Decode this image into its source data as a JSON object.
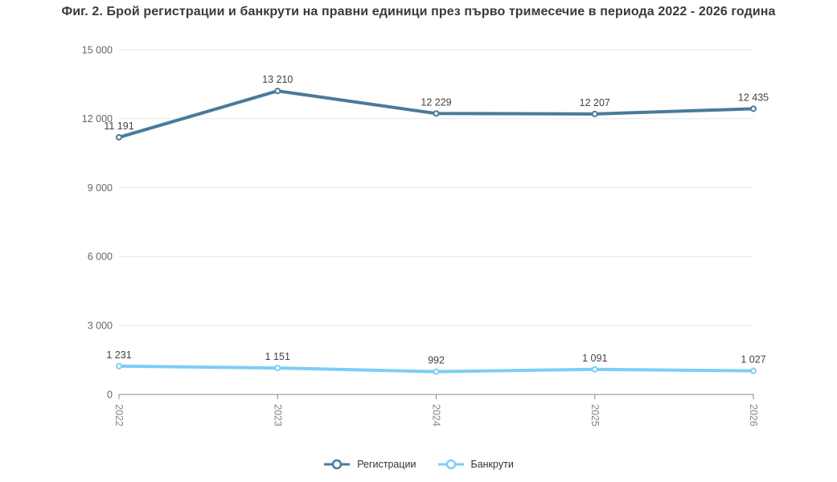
{
  "chart_data": {
    "type": "line",
    "title": "Фиг. 2. Брой регистрации и банкрути на правни единици през първо тримесечие в периода 2022 - 2026 година",
    "xlabel": "",
    "ylabel": "",
    "categories": [
      "2022",
      "2023",
      "2024",
      "2025",
      "2026"
    ],
    "series": [
      {
        "name": "Регистрации",
        "color": "#4a7a9b",
        "values": [
          11191,
          13210,
          12229,
          12207,
          12435
        ],
        "point_labels": [
          "11 191",
          "13 210",
          "12 229",
          "12 207",
          "12 435"
        ]
      },
      {
        "name": "Банкрути",
        "color": "#7ecdf5",
        "values": [
          1231,
          1151,
          992,
          1091,
          1027
        ],
        "point_labels": [
          "1 231",
          "1 151",
          "992",
          "1 091",
          "1 027"
        ]
      }
    ],
    "ylim": [
      0,
      15000
    ],
    "ytick_step": 3000,
    "ytick_labels": [
      "0",
      "3 000",
      "6 000",
      "9 000",
      "12 000",
      "15 000"
    ],
    "grid": "horizontal",
    "legend_position": "bottom",
    "marker": "open-circle",
    "data_labels": true,
    "x_labels_rotation_deg": 90
  },
  "colors": {
    "background": "#ffffff",
    "title": "#3a3a3a",
    "gridline": "#e5e7ea",
    "axis_line": "#8a8a8a",
    "x_axis_label": "#858585",
    "y_axis_label": "#666666",
    "data_label": "#424242",
    "legend_text": "#333333"
  }
}
